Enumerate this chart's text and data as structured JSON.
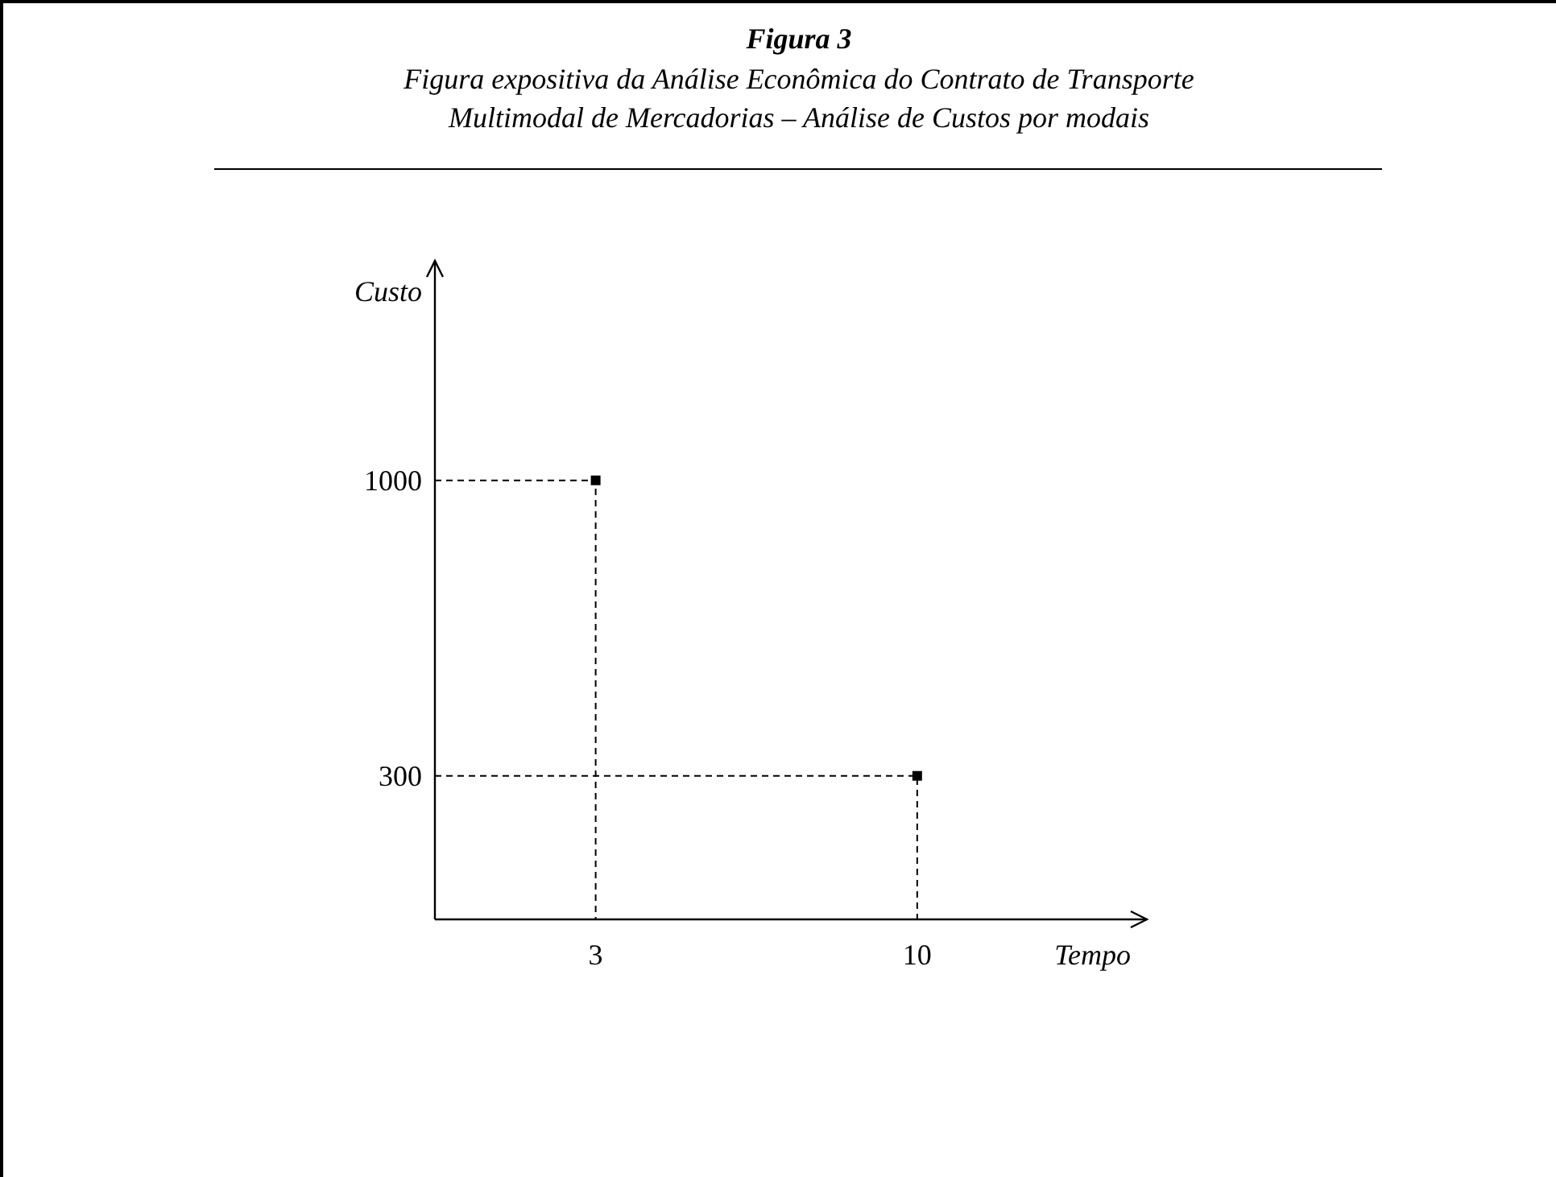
{
  "chart_data": {
    "type": "scatter",
    "title": "Figura 3",
    "subtitle": "Figura expositiva da Análise Econômica do Contrato de Transporte\nMultimodal de Mercadorias – Análise de Custos por modais",
    "xlabel": "Tempo",
    "ylabel": "Custo",
    "x": [
      3,
      10
    ],
    "series": [
      {
        "color": "#000000",
        "values": [
          1000,
          300
        ]
      },
      {
        "type": "line",
        "color": "#000000",
        "x": [
          -0.5,
          3,
          3
        ],
        "values": [
          1000,
          1000,
          -40
        ],
        "marker": "none",
        "line_style": "dashed"
      },
      {
        "type": "line",
        "color": "#000000",
        "x": [
          -0.5,
          10,
          10
        ],
        "values": [
          300,
          300,
          -40
        ],
        "marker": "none",
        "line_style": "dashed"
      }
    ],
    "xlim": [
      -0.5,
      15
    ],
    "ylim": [
      -40,
      1520
    ],
    "xticks": [
      3,
      10
    ],
    "yticks": [
      300,
      1000
    ],
    "marker": "square",
    "grid": false
  }
}
